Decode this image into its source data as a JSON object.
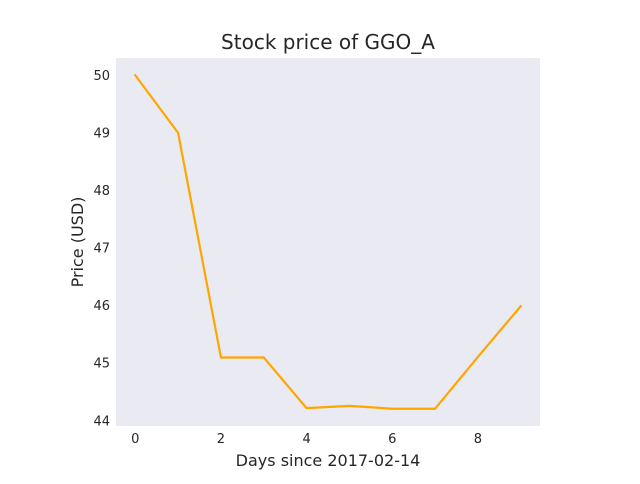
{
  "chart_data": {
    "type": "line",
    "title": "Stock price of GGO_A",
    "xlabel": "Days since 2017-02-14",
    "ylabel": "Price (USD)",
    "x": [
      0,
      1,
      2,
      3,
      4,
      5,
      6,
      7,
      8,
      9
    ],
    "series": [
      {
        "values": [
          50.0,
          49.0,
          45.1,
          45.1,
          44.22,
          44.26,
          44.21,
          44.21,
          45.11,
          45.99
        ],
        "color": "#ffa500"
      }
    ],
    "xlim": [
      -0.45,
      9.45
    ],
    "ylim": [
      43.91,
      50.3
    ],
    "xticks": [
      0,
      2,
      4,
      6,
      8
    ],
    "yticks": [
      44,
      45,
      46,
      47,
      48,
      49,
      50
    ],
    "grid": false,
    "background_color": "#eaeaf2"
  }
}
